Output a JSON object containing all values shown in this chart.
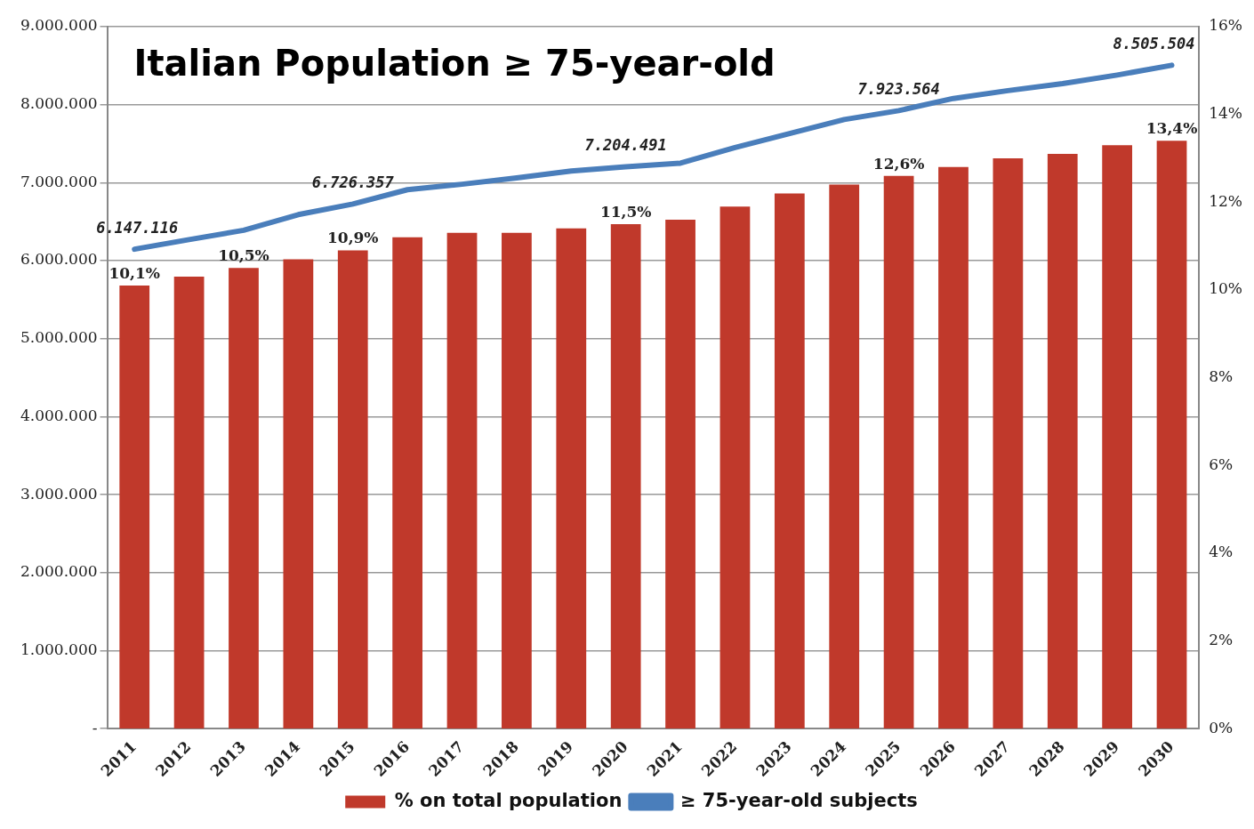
{
  "chart_data": {
    "type": "bar",
    "title": "Italian Population ≥ 75-year-old",
    "categories": [
      "2011",
      "2012",
      "2013",
      "2014",
      "2015",
      "2016",
      "2017",
      "2018",
      "2019",
      "2020",
      "2021",
      "2022",
      "2023",
      "2024",
      "2025",
      "2026",
      "2027",
      "2028",
      "2029",
      "2030"
    ],
    "series": [
      {
        "name": "% on total population",
        "axis": "y2",
        "color": "#c0392b",
        "values": [
          10.1,
          10.3,
          10.5,
          10.7,
          10.9,
          11.2,
          11.3,
          11.3,
          11.4,
          11.5,
          11.6,
          11.9,
          12.2,
          12.4,
          12.6,
          12.8,
          13.0,
          13.1,
          13.3,
          13.4
        ],
        "value_labels": [
          "10,1%",
          null,
          "10,5%",
          null,
          "10,9%",
          null,
          null,
          null,
          null,
          "11,5%",
          null,
          null,
          null,
          null,
          "12,6%",
          null,
          null,
          null,
          null,
          "13,4%"
        ]
      },
      {
        "name": "≥ 75-year-old subjects",
        "type": "line",
        "axis": "y",
        "color": "#4a7ebb",
        "values": [
          6147116,
          6270000,
          6390000,
          6590000,
          6726357,
          6910000,
          6980000,
          7060000,
          7150000,
          7204491,
          7250000,
          7450000,
          7630000,
          7810000,
          7923564,
          8080000,
          8180000,
          8270000,
          8380000,
          8505504
        ],
        "value_labels": [
          "6.147.116",
          null,
          null,
          null,
          "6.726.357",
          null,
          null,
          null,
          null,
          "7.204.491",
          null,
          null,
          null,
          null,
          "7.923.564",
          null,
          null,
          null,
          null,
          "8.505.504"
        ]
      }
    ],
    "ylim": [
      0,
      9000000
    ],
    "yticks": [
      {
        "value": 0,
        "label": "-"
      },
      {
        "value": 1000000,
        "label": "1.000.000"
      },
      {
        "value": 2000000,
        "label": "2.000.000"
      },
      {
        "value": 3000000,
        "label": "3.000.000"
      },
      {
        "value": 4000000,
        "label": "4.000.000"
      },
      {
        "value": 5000000,
        "label": "5.000.000"
      },
      {
        "value": 6000000,
        "label": "6.000.000"
      },
      {
        "value": 7000000,
        "label": "7.000.000"
      },
      {
        "value": 8000000,
        "label": "8.000.000"
      },
      {
        "value": 9000000,
        "label": "9.000.000"
      }
    ],
    "y2lim": [
      0,
      16
    ],
    "y2ticks": [
      {
        "value": 0,
        "label": "0%"
      },
      {
        "value": 2,
        "label": "2%"
      },
      {
        "value": 4,
        "label": "4%"
      },
      {
        "value": 6,
        "label": "6%"
      },
      {
        "value": 8,
        "label": "8%"
      },
      {
        "value": 10,
        "label": "10%"
      },
      {
        "value": 12,
        "label": "12%"
      },
      {
        "value": 14,
        "label": "14%"
      },
      {
        "value": 16,
        "label": "16%"
      }
    ],
    "grid": "y",
    "legend": "bottom",
    "marker": "none",
    "line_style": "solid"
  }
}
